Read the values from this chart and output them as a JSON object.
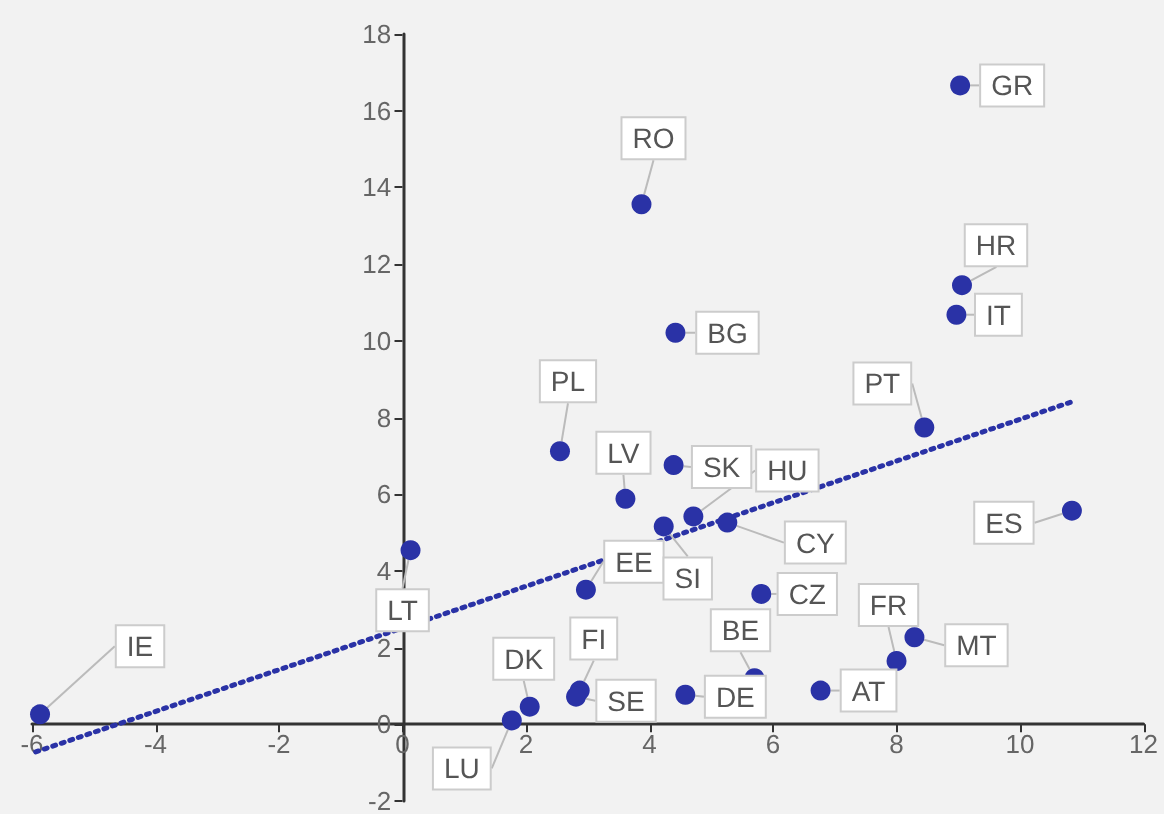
{
  "chart_data": {
    "type": "scatter",
    "xlim": [
      -6,
      12
    ],
    "ylim": [
      -2,
      18
    ],
    "xticks": [
      -6,
      -4,
      -2,
      0,
      2,
      4,
      6,
      8,
      10,
      12
    ],
    "yticks": [
      -2,
      0,
      2,
      4,
      6,
      8,
      10,
      12,
      14,
      16,
      18
    ],
    "grid": false,
    "marker": "circle",
    "series": [
      {
        "type": "scatter",
        "color": "#2a32a6",
        "x": [
          -5.87,
          0.13,
          1.77,
          2.06,
          2.87,
          2.81,
          2.55,
          3.61,
          3.87,
          2.97,
          4.23,
          4.39,
          4.42,
          4.71,
          5.26,
          5.81,
          4.58,
          5.7,
          6.77,
          8.0,
          8.29,
          8.45,
          8.97,
          9.06,
          9.03,
          10.84
        ],
        "values": [
          0.26,
          4.54,
          0.1,
          0.46,
          0.88,
          0.72,
          7.12,
          5.88,
          13.56,
          3.51,
          5.16,
          6.76,
          10.21,
          5.42,
          5.26,
          3.4,
          0.77,
          1.2,
          0.88,
          1.65,
          2.27,
          7.74,
          10.68,
          11.45,
          16.66,
          5.57
        ],
        "value_labels": [
          "IE",
          "LT",
          "LU",
          "DK",
          "FI",
          "SE",
          "PL",
          "LV",
          "RO",
          "EE",
          "SI",
          "SK",
          "BG",
          "HU",
          "CY",
          "CZ",
          "DE",
          "BE",
          "AT",
          "FR",
          "MT",
          "PT",
          "IT",
          "HR",
          "GR",
          "ES"
        ]
      },
      {
        "type": "line",
        "color": "#2a32a6",
        "line_style": "dotted",
        "marker": "none",
        "x": [
          -5.94,
          10.84
        ],
        "values": [
          -0.72,
          8.41
        ]
      }
    ]
  }
}
